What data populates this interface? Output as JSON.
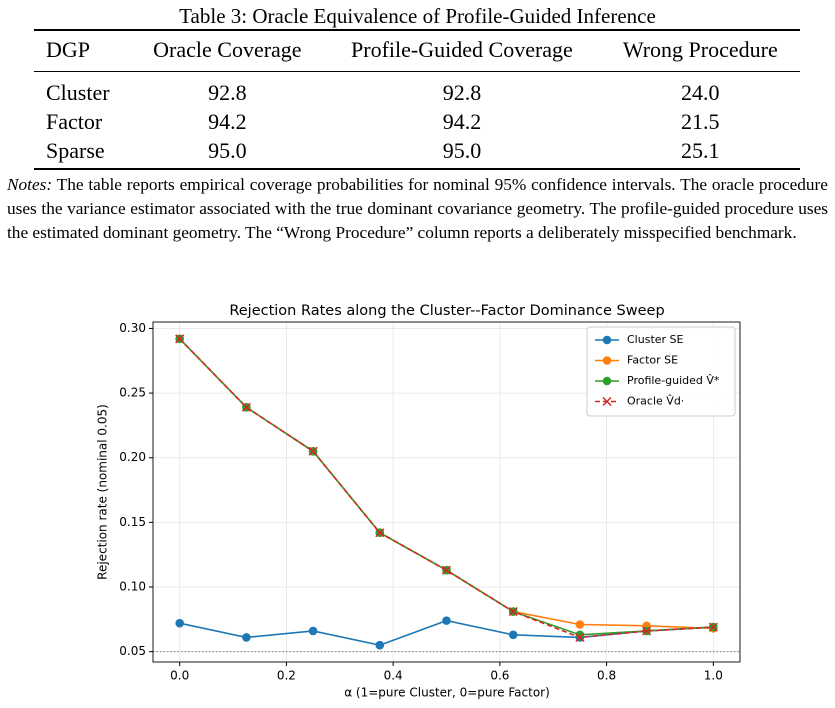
{
  "table": {
    "caption": "Table 3: Oracle Equivalence of Profile-Guided Inference",
    "header": [
      "DGP",
      "Oracle Coverage",
      "Profile-Guided Coverage",
      "Wrong Procedure"
    ],
    "rows": [
      [
        "Cluster",
        "92.8",
        "92.8",
        "24.0"
      ],
      [
        "Factor",
        "94.2",
        "94.2",
        "21.5"
      ],
      [
        "Sparse",
        "95.0",
        "95.0",
        "25.1"
      ]
    ]
  },
  "notes": {
    "label": "Notes:",
    "text": "The table reports empirical coverage probabilities for nominal 95% confidence intervals. The oracle procedure uses the variance estimator associated with the true dominant covariance geometry. The profile-guided procedure uses the estimated dominant geometry. The “Wrong Procedure” column reports a deliberately misspecified benchmark."
  },
  "chart_data": {
    "type": "line",
    "title": "Rejection Rates along the Cluster--Factor Dominance Sweep",
    "x_label": "α (1=pure Cluster, 0=pure Factor)",
    "y_label": "Rejection rate (nominal 0.05)",
    "x": [
      0,
      0.125,
      0.25,
      0.375,
      0.5,
      0.625,
      0.75,
      0.875,
      1.0
    ],
    "series": [
      {
        "name": "Cluster SE",
        "color": "#1f77b4",
        "marker": "o",
        "linestyle": "solid",
        "values": [
          0.072,
          0.061,
          0.066,
          0.055,
          0.074,
          0.063,
          0.061,
          0.066,
          0.069
        ]
      },
      {
        "name": "Factor SE",
        "color": "#ff7f0e",
        "marker": "o",
        "linestyle": "solid",
        "values": [
          0.292,
          0.239,
          0.205,
          0.142,
          0.113,
          0.081,
          0.071,
          0.07,
          0.068
        ]
      },
      {
        "name": "Profile-guided V̂*",
        "color": "#2ca02c",
        "marker": "o",
        "linestyle": "solid",
        "values": [
          0.292,
          0.239,
          0.205,
          0.142,
          0.113,
          0.081,
          0.063,
          0.066,
          0.069
        ]
      },
      {
        "name": "Oracle V̂d·",
        "color": "#d62728",
        "marker": "x",
        "linestyle": "dashed",
        "values": [
          0.292,
          0.239,
          0.205,
          0.142,
          0.113,
          0.081,
          0.061,
          0.066,
          0.069
        ]
      }
    ],
    "hline": 0.05,
    "xlim": [
      -0.05,
      1.05
    ],
    "ylim": [
      0.042,
      0.305
    ],
    "xticks": [
      {
        "value": 0,
        "label": "0.0"
      },
      0.2,
      0.4,
      0.6,
      0.8,
      {
        "value": 1,
        "label": "1.0"
      }
    ],
    "yticks": [
      0.05,
      {
        "value": 0.1,
        "label": "0.10"
      },
      0.15,
      {
        "value": 0.2,
        "label": "0.20"
      },
      0.25,
      {
        "value": 0.3,
        "label": "0.30"
      }
    ],
    "grid": true,
    "legend": "upper right"
  }
}
